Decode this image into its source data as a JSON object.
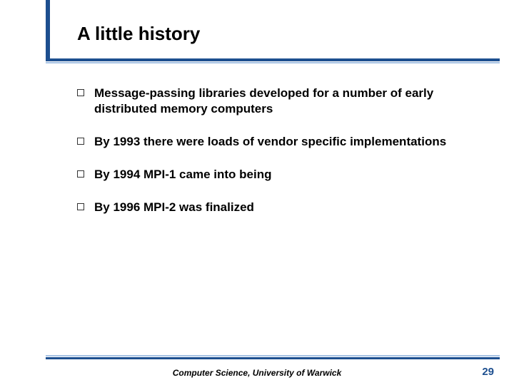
{
  "colors": {
    "accent_dark": "#1d4f8f",
    "accent_light": "#a7c3e3",
    "text": "#000000",
    "background": "#ffffff",
    "bullet_border": "#333333"
  },
  "typography": {
    "title_fontsize": 26,
    "bullet_fontsize": 17,
    "footer_fontsize": 12,
    "pagenum_fontsize": 15,
    "font_family": "Arial"
  },
  "slide": {
    "title": "A little history",
    "bullets": [
      "Message-passing libraries developed for a number of early distributed memory computers",
      "By 1993 there were loads of vendor specific implementations",
      "By 1994 MPI-1 came into being",
      "By 1996 MPI-2 was finalized"
    ],
    "footer": "Computer Science, University of Warwick",
    "page_number": "29"
  }
}
